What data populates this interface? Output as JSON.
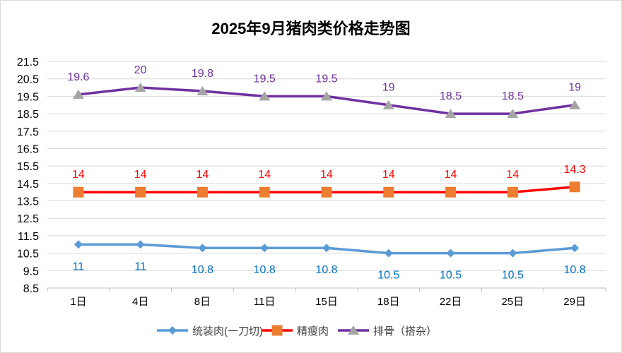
{
  "chart_data": {
    "type": "line",
    "title": "2025年9月猪肉类价格走势图",
    "categories": [
      "1日",
      "4日",
      "8日",
      "11日",
      "15日",
      "18日",
      "22日",
      "25日",
      "29日"
    ],
    "ylim": [
      8.5,
      21.5
    ],
    "yticks": [
      "21.5",
      "20.5",
      "19.5",
      "18.5",
      "17.5",
      "16.5",
      "15.5",
      "14.5",
      "13.5",
      "12.5",
      "11.5",
      "10.5",
      "9.5",
      "8.5"
    ],
    "grid": true,
    "legend_position": "bottom",
    "series": [
      {
        "name": "统装肉(一刀切)",
        "values": [
          11,
          11,
          10.8,
          10.8,
          10.8,
          10.5,
          10.5,
          10.5,
          10.8
        ],
        "color": "#5b9bd5",
        "marker": "diamond",
        "marker_color": "#5b9bd5",
        "label_color": "#0070c0",
        "label_pos": "below"
      },
      {
        "name": "精瘦肉",
        "values": [
          14,
          14,
          14,
          14,
          14,
          14,
          14,
          14,
          14.3
        ],
        "color": "#ff0000",
        "marker": "square",
        "marker_color": "#ed7d31",
        "label_color": "#ff0000",
        "label_pos": "above"
      },
      {
        "name": "排骨（搭杂）",
        "values": [
          19.6,
          20,
          19.8,
          19.5,
          19.5,
          19,
          18.5,
          18.5,
          19
        ],
        "color": "#7030a0",
        "marker": "triangle",
        "marker_color": "#a5a5a5",
        "label_color": "#7030a0",
        "label_pos": "above"
      }
    ]
  }
}
